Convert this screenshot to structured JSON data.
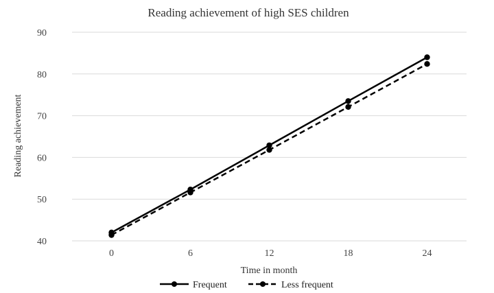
{
  "chart_data": {
    "type": "line",
    "title": "Reading achievement of  high SES children",
    "xlabel": "Time in month",
    "ylabel": "Reading achievement",
    "categories": [
      "0",
      "6",
      "12",
      "18",
      "24"
    ],
    "y_ticks": [
      "40",
      "50",
      "60",
      "70",
      "80",
      "90"
    ],
    "ylim": [
      40,
      90
    ],
    "grid": true,
    "legend_position": "bottom",
    "series": [
      {
        "name": "Frequent",
        "values": [
          42.0,
          52.3,
          62.9,
          73.5,
          84.0
        ],
        "style": "solid",
        "color": "#000000"
      },
      {
        "name": "Less frequent",
        "values": [
          41.4,
          51.6,
          61.8,
          72.1,
          82.4
        ],
        "style": "dashed",
        "color": "#000000"
      }
    ]
  }
}
